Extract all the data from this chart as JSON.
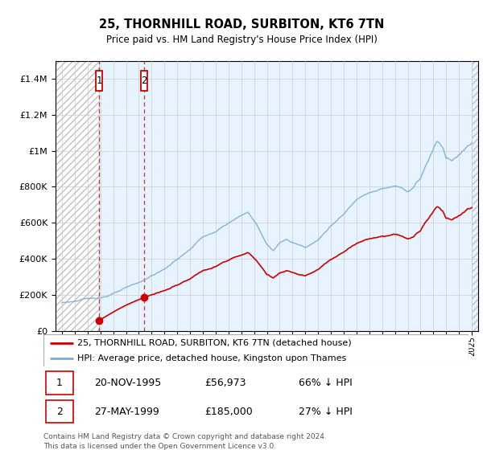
{
  "title": "25, THORNHILL ROAD, SURBITON, KT6 7TN",
  "subtitle": "Price paid vs. HM Land Registry's House Price Index (HPI)",
  "sale1_price": 56973,
  "sale1_year": 1995.89,
  "sale2_price": 185000,
  "sale2_year": 1999.41,
  "legend_line1": "25, THORNHILL ROAD, SURBITON, KT6 7TN (detached house)",
  "legend_line2": "HPI: Average price, detached house, Kingston upon Thames",
  "table_row1": [
    "1",
    "20-NOV-1995",
    "£56,973",
    "66% ↓ HPI"
  ],
  "table_row2": [
    "2",
    "27-MAY-1999",
    "£185,000",
    "27% ↓ HPI"
  ],
  "footnote": "Contains HM Land Registry data © Crown copyright and database right 2024.\nThis data is licensed under the Open Government Licence v3.0.",
  "hpi_color": "#7aadd4",
  "price_color": "#cc0000",
  "ylim_max": 1500000,
  "ylim_min": 0,
  "xmin": 1992.5,
  "xmax": 2025.5
}
